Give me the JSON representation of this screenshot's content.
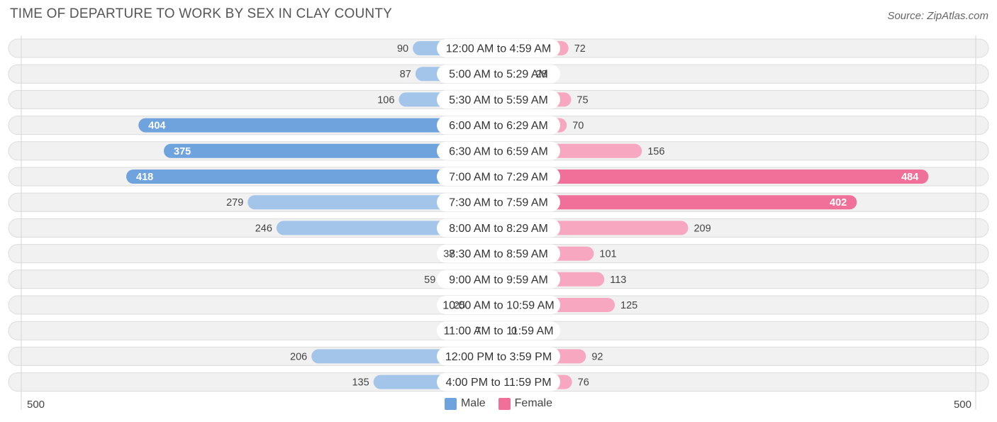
{
  "title": "TIME OF DEPARTURE TO WORK BY SEX IN CLAY COUNTY",
  "source": "Source: ZipAtlas.com",
  "colors": {
    "male": "#6fa3de",
    "male_light": "#a4c5ea",
    "female": "#f0709a",
    "female_light": "#f7a8c0",
    "row_bg": "#f1f1f1",
    "row_border": "#dcdcdc"
  },
  "legend": {
    "male": "Male",
    "female": "Female"
  },
  "axis": {
    "left_label": "500",
    "right_label": "500"
  },
  "chart_data": {
    "type": "bar",
    "orientation": "horizontal-diverging",
    "title": "TIME OF DEPARTURE TO WORK BY SEX IN CLAY COUNTY",
    "xlim": [
      0,
      500
    ],
    "categories": [
      "12:00 AM to 4:59 AM",
      "5:00 AM to 5:29 AM",
      "5:30 AM to 5:59 AM",
      "6:00 AM to 6:29 AM",
      "6:30 AM to 6:59 AM",
      "7:00 AM to 7:29 AM",
      "7:30 AM to 7:59 AM",
      "8:00 AM to 8:29 AM",
      "8:30 AM to 8:59 AM",
      "9:00 AM to 9:59 AM",
      "10:00 AM to 10:59 AM",
      "11:00 AM to 11:59 AM",
      "12:00 PM to 3:59 PM",
      "4:00 PM to 11:59 PM"
    ],
    "series": [
      {
        "name": "Male",
        "values": [
          90,
          87,
          106,
          404,
          375,
          418,
          279,
          246,
          37,
          59,
          25,
          7,
          206,
          135
        ]
      },
      {
        "name": "Female",
        "values": [
          72,
          28,
          75,
          70,
          156,
          484,
          402,
          209,
          101,
          113,
          125,
          0,
          92,
          76
        ]
      }
    ]
  }
}
